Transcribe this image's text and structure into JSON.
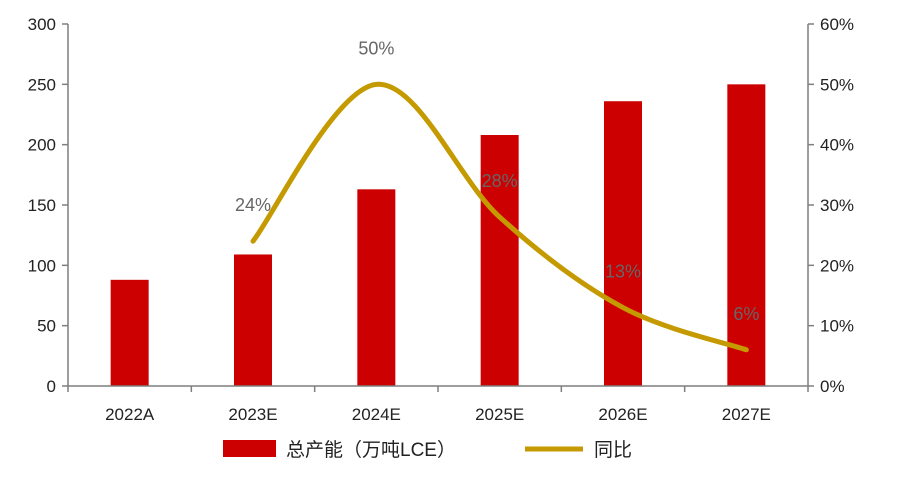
{
  "chart_data": {
    "type": "bar",
    "categories": [
      "2022A",
      "2023E",
      "2024E",
      "2025E",
      "2026E",
      "2027E"
    ],
    "series": [
      {
        "name": "总产能（万吨LCE）",
        "type": "bar",
        "axis": "left",
        "color": "#cc0000",
        "values": [
          88,
          109,
          163,
          208,
          236,
          250
        ]
      },
      {
        "name": "同比",
        "type": "line",
        "axis": "right",
        "color": "#c49a00",
        "values": [
          null,
          24,
          50,
          28,
          13,
          6
        ],
        "labels": [
          "",
          "24%",
          "50%",
          "28%",
          "13%",
          "6%"
        ]
      }
    ],
    "y_left": {
      "min": 0,
      "max": 300,
      "ticks": [
        0,
        50,
        100,
        150,
        200,
        250,
        300
      ]
    },
    "y_right": {
      "min": 0,
      "max": 60,
      "ticks": [
        "0%",
        "10%",
        "20%",
        "30%",
        "40%",
        "50%",
        "60%"
      ]
    },
    "legend": {
      "position": "bottom"
    },
    "grid": false
  }
}
